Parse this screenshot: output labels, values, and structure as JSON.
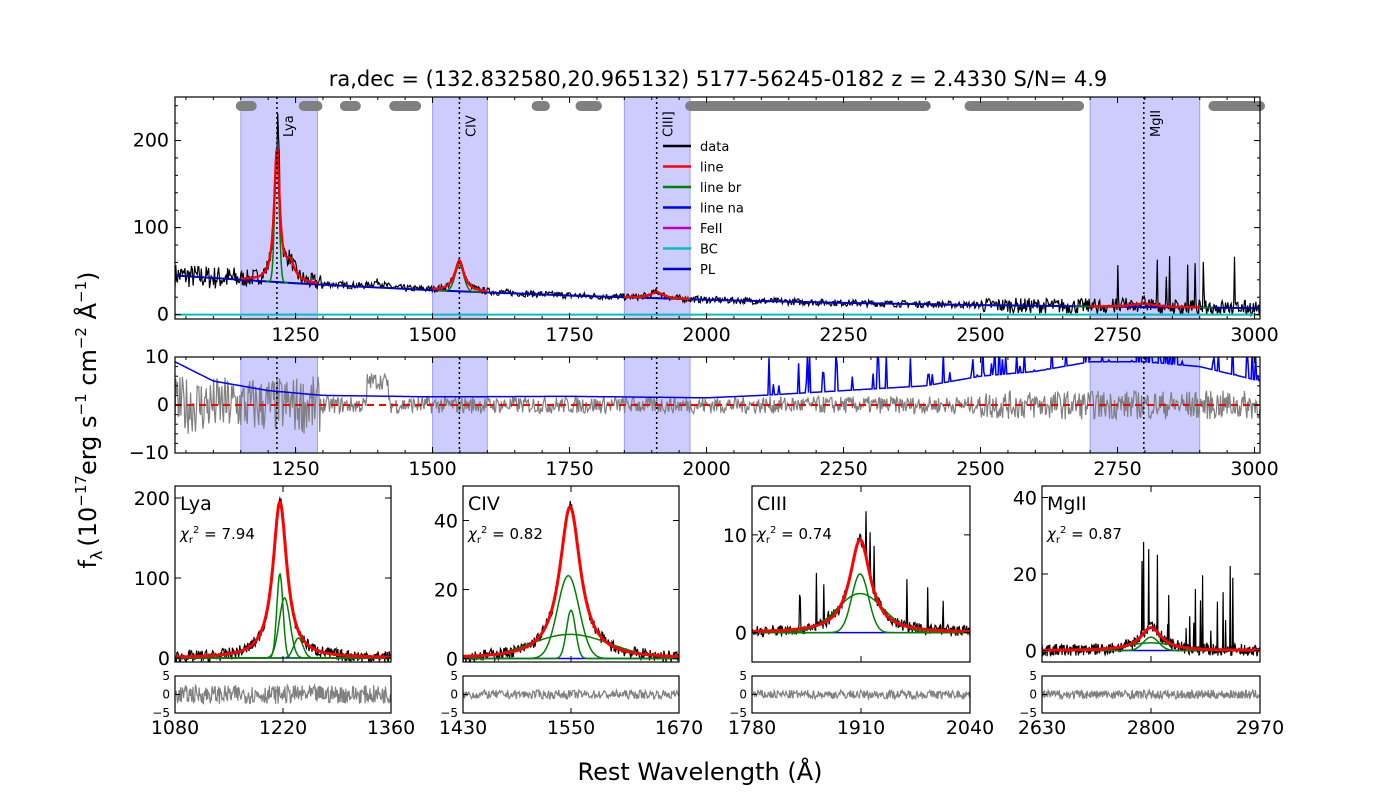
{
  "chart_data": {
    "type": "line",
    "title": "ra,dec = (132.832580,20.965132)   5177-56245-0182   z = 2.4330   S/N= 4.9",
    "xlabel": "Rest Wavelength (Å)",
    "ylabel_html": "f_λ (10^-17 erg s^-1 cm^-2 Å^-1)",
    "ylabel_parts": {
      "f": "f",
      "lambda": "λ",
      "open": "(10",
      "e1": "−17",
      "erg": "erg s",
      "e2": "−1",
      "cm": " cm",
      "e3": "−2",
      "A": " Å",
      "e4": "−1",
      "close": ")"
    },
    "legend": [
      {
        "name": "data",
        "color": "#000000"
      },
      {
        "name": "line",
        "color": "#ff0000"
      },
      {
        "name": "line br",
        "color": "#008000"
      },
      {
        "name": "line na",
        "color": "#0000ff"
      },
      {
        "name": "FeII",
        "color": "#bf00bf"
      },
      {
        "name": "BC",
        "color": "#00bfbf"
      },
      {
        "name": "PL",
        "color": "#0000cd"
      }
    ],
    "main": {
      "xlim": [
        1030,
        3010
      ],
      "ylim": [
        -5,
        250
      ],
      "xticks": [
        1250,
        1500,
        1750,
        2000,
        2250,
        2500,
        2750,
        3000
      ],
      "xticklabels": [
        "1250",
        "1500",
        "1750",
        "2000",
        "2250",
        "2500",
        "2750",
        "3000"
      ],
      "yticks": [
        0,
        100,
        200
      ],
      "yticklabels": [
        "0",
        "100",
        "200"
      ],
      "fit_windows": [
        [
          1150,
          1290
        ],
        [
          1500,
          1600
        ],
        [
          1850,
          1970
        ],
        [
          2700,
          2900
        ]
      ],
      "line_markers": [
        {
          "name": "Lya",
          "x": 1216
        },
        {
          "name": "CIV",
          "x": 1549
        },
        {
          "name": "CIII]",
          "x": 1909
        },
        {
          "name": "MgII",
          "x": 2798
        }
      ],
      "continuum_segments": [
        [
          1150,
          1170
        ],
        [
          1265,
          1290
        ],
        [
          1340,
          1360
        ],
        [
          1430,
          1470
        ],
        [
          1690,
          1705
        ],
        [
          1770,
          1800
        ],
        [
          1970,
          2400
        ],
        [
          2480,
          2680
        ],
        [
          2925,
          3010
        ]
      ],
      "powerlaw": {
        "x": [
          1030,
          1250,
          1500,
          1750,
          2000,
          2250,
          2500,
          2750,
          3010
        ],
        "y": [
          45,
          36,
          28,
          22,
          17,
          13.5,
          11,
          9,
          7.5
        ]
      },
      "bc_level": 0
    },
    "residual": {
      "xlim": [
        1030,
        3010
      ],
      "ylim": [
        -10,
        10
      ],
      "xticks": [
        1250,
        1500,
        1750,
        2000,
        2250,
        2500,
        2750,
        3000
      ],
      "xticklabels": [
        "1250",
        "1500",
        "1750",
        "2000",
        "2250",
        "2500",
        "2750",
        "3000"
      ],
      "yticks": [
        -10,
        0,
        10
      ],
      "yticklabels": [
        "−10",
        "0",
        "10"
      ],
      "error_curve": {
        "x": [
          1030,
          1100,
          1200,
          1300,
          1500,
          1750,
          2000,
          2100,
          2250,
          2400,
          2500,
          2600,
          2700,
          2800,
          2900,
          3010
        ],
        "y": [
          9,
          5,
          3,
          2,
          1.7,
          1.8,
          1.5,
          2,
          3,
          4,
          6,
          7,
          9,
          9,
          8,
          5
        ]
      }
    },
    "zoom_panels": [
      {
        "name": "Lya",
        "chi2": "χ_r² = 7.94",
        "chi2_sym": "χ",
        "chi2_sub": "r",
        "chi2_sup": "2",
        "chi2_value": " = 7.94",
        "xlim": [
          1080,
          1360
        ],
        "ylim": [
          -5,
          215
        ],
        "xticks": [
          1080,
          1220,
          1360
        ],
        "xticklabels": [
          "1080",
          "1220",
          "1360"
        ],
        "yticks": [
          0,
          100,
          200
        ],
        "yticklabels": [
          "0",
          "100",
          "200"
        ],
        "center": 1216,
        "peak": 195,
        "broad": [
          {
            "c": 1216,
            "a": 105,
            "s": 4
          },
          {
            "c": 1222,
            "a": 75,
            "s": 7
          },
          {
            "c": 1240,
            "a": 25,
            "s": 6
          }
        ],
        "total_width": 11
      },
      {
        "name": "CIV",
        "chi2": "χ_r² = 0.82",
        "chi2_sym": "χ",
        "chi2_sub": "r",
        "chi2_sup": "2",
        "chi2_value": " = 0.82",
        "xlim": [
          1430,
          1670
        ],
        "ylim": [
          -1,
          50
        ],
        "xticks": [
          1430,
          1550,
          1670
        ],
        "xticklabels": [
          "1430",
          "1550",
          "1670"
        ],
        "yticks": [
          0,
          20,
          40
        ],
        "yticklabels": [
          "0",
          "20",
          "40"
        ],
        "center": 1549,
        "peak": 44,
        "broad": [
          {
            "c": 1547,
            "a": 24,
            "s": 12
          },
          {
            "c": 1550,
            "a": 14,
            "s": 5
          },
          {
            "c": 1549,
            "a": 7,
            "s": 45
          }
        ],
        "total_width": 14
      },
      {
        "name": "CIII",
        "chi2": "χ_r² = 0.74",
        "chi2_sym": "χ",
        "chi2_sub": "r",
        "chi2_sup": "2",
        "chi2_value": " = 0.74",
        "xlim": [
          1780,
          2040
        ],
        "ylim": [
          -3,
          15
        ],
        "xticks": [
          1780,
          1910,
          2040
        ],
        "xticklabels": [
          "1780",
          "1910",
          "2040"
        ],
        "yticks": [
          0,
          10
        ],
        "yticklabels": [
          "0",
          "10"
        ],
        "center": 1909,
        "peak": 9.5,
        "broad": [
          {
            "c": 1909,
            "a": 6,
            "s": 10
          },
          {
            "c": 1909,
            "a": 4,
            "s": 28
          }
        ],
        "total_width": 15
      },
      {
        "name": "MgII",
        "chi2": "χ_r² = 0.87",
        "chi2_sym": "χ",
        "chi2_sub": "r",
        "chi2_sup": "2",
        "chi2_value": " = 0.87",
        "xlim": [
          2630,
          2970
        ],
        "ylim": [
          -3,
          43
        ],
        "xticks": [
          2630,
          2800,
          2970
        ],
        "xticklabels": [
          "2630",
          "2800",
          "2970"
        ],
        "yticks": [
          0,
          20,
          40
        ],
        "yticklabels": [
          "0",
          "20",
          "40"
        ],
        "center": 2800,
        "peak": 6,
        "broad": [
          {
            "c": 2800,
            "a": 3.5,
            "s": 12
          },
          {
            "c": 2800,
            "a": 2,
            "s": 40
          }
        ],
        "total_width": 20
      }
    ],
    "zoom_residual": {
      "ylim": [
        -5,
        5
      ],
      "yticks": [
        -5,
        0,
        5
      ],
      "yticklabels": [
        "−5",
        "0",
        "5"
      ]
    }
  }
}
